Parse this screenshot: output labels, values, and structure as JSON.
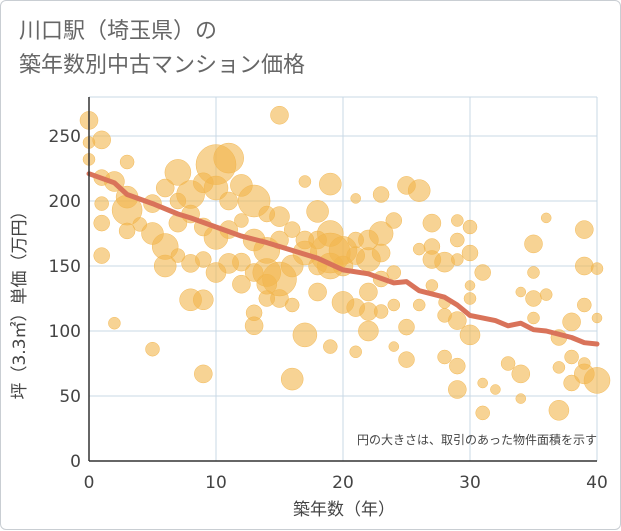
{
  "title_line1": "川口駅（埼玉県）の",
  "title_line2": "築年数別中古マンション価格",
  "note": "円の大きさは、取引のあった物件面積を示す",
  "colors": {
    "bubble": "#f2b54c",
    "line": "#d9735a",
    "grid": "#c9d9e6",
    "axis": "#333333"
  },
  "chart_data": {
    "type": "scatter",
    "xlabel": "築年数（年）",
    "ylabel": "坪（3.3㎡）単価（万円）",
    "xlim": [
      0,
      40
    ],
    "ylim": [
      0,
      280
    ],
    "xticks": [
      0,
      10,
      20,
      30,
      40
    ],
    "yticks": [
      0,
      50,
      100,
      150,
      200,
      250
    ],
    "grid": true,
    "bubbles": [
      [
        0,
        262,
        9
      ],
      [
        0,
        245,
        6
      ],
      [
        1,
        247,
        9
      ],
      [
        0,
        232,
        6
      ],
      [
        1,
        218,
        8
      ],
      [
        1,
        198,
        7
      ],
      [
        1,
        183,
        8
      ],
      [
        1,
        158,
        8
      ],
      [
        2,
        106,
        6
      ],
      [
        2,
        215,
        10
      ],
      [
        3,
        230,
        7
      ],
      [
        3,
        203,
        11
      ],
      [
        3,
        193,
        15
      ],
      [
        3,
        177,
        8
      ],
      [
        4,
        182,
        7
      ],
      [
        5,
        198,
        9
      ],
      [
        5,
        175,
        11
      ],
      [
        5,
        86,
        7
      ],
      [
        6,
        210,
        9
      ],
      [
        6,
        165,
        13
      ],
      [
        6,
        150,
        11
      ],
      [
        7,
        222,
        13
      ],
      [
        7,
        200,
        8
      ],
      [
        7,
        183,
        9
      ],
      [
        7,
        158,
        7
      ],
      [
        8,
        205,
        14
      ],
      [
        8,
        190,
        9
      ],
      [
        8,
        152,
        9
      ],
      [
        8,
        124,
        11
      ],
      [
        9,
        214,
        10
      ],
      [
        9,
        180,
        9
      ],
      [
        9,
        155,
        8
      ],
      [
        9,
        124,
        10
      ],
      [
        9,
        67,
        9
      ],
      [
        10,
        228,
        20
      ],
      [
        10,
        210,
        12
      ],
      [
        10,
        172,
        12
      ],
      [
        10,
        145,
        10
      ],
      [
        11,
        233,
        15
      ],
      [
        11,
        200,
        9
      ],
      [
        11,
        178,
        9
      ],
      [
        11,
        152,
        10
      ],
      [
        12,
        212,
        11
      ],
      [
        12,
        185,
        7
      ],
      [
        12,
        153,
        9
      ],
      [
        12,
        136,
        9
      ],
      [
        13,
        200,
        16
      ],
      [
        13,
        170,
        11
      ],
      [
        13,
        145,
        9
      ],
      [
        13,
        114,
        8
      ],
      [
        13,
        104,
        9
      ],
      [
        14,
        190,
        8
      ],
      [
        14,
        162,
        13
      ],
      [
        14,
        145,
        14
      ],
      [
        14,
        136,
        10
      ],
      [
        14,
        125,
        8
      ],
      [
        15,
        266,
        9
      ],
      [
        15,
        188,
        10
      ],
      [
        15,
        170,
        9
      ],
      [
        15,
        140,
        17
      ],
      [
        15,
        125,
        9
      ],
      [
        16,
        178,
        8
      ],
      [
        16,
        150,
        11
      ],
      [
        16,
        120,
        7
      ],
      [
        16,
        63,
        11
      ],
      [
        17,
        215,
        6
      ],
      [
        17,
        170,
        9
      ],
      [
        17,
        160,
        12
      ],
      [
        17,
        97,
        12
      ],
      [
        18,
        192,
        11
      ],
      [
        18,
        170,
        9
      ],
      [
        18,
        150,
        9
      ],
      [
        18,
        130,
        9
      ],
      [
        19,
        213,
        11
      ],
      [
        19,
        175,
        13
      ],
      [
        19,
        160,
        20
      ],
      [
        19,
        150,
        13
      ],
      [
        19,
        88,
        7
      ],
      [
        20,
        162,
        14
      ],
      [
        20,
        150,
        10
      ],
      [
        20,
        122,
        11
      ],
      [
        21,
        202,
        5
      ],
      [
        21,
        170,
        8
      ],
      [
        21,
        158,
        9
      ],
      [
        21,
        118,
        9
      ],
      [
        21,
        84,
        6
      ],
      [
        22,
        170,
        10
      ],
      [
        22,
        155,
        12
      ],
      [
        22,
        130,
        9
      ],
      [
        22,
        115,
        9
      ],
      [
        22,
        100,
        10
      ],
      [
        23,
        205,
        8
      ],
      [
        23,
        175,
        12
      ],
      [
        23,
        160,
        9
      ],
      [
        23,
        140,
        8
      ],
      [
        23,
        115,
        7
      ],
      [
        24,
        185,
        8
      ],
      [
        24,
        145,
        7
      ],
      [
        24,
        120,
        6
      ],
      [
        24,
        88,
        5
      ],
      [
        25,
        212,
        9
      ],
      [
        25,
        103,
        8
      ],
      [
        25,
        78,
        8
      ],
      [
        26,
        208,
        11
      ],
      [
        26,
        163,
        6
      ],
      [
        26,
        120,
        6
      ],
      [
        27,
        183,
        9
      ],
      [
        27,
        165,
        8
      ],
      [
        27,
        155,
        9
      ],
      [
        27,
        135,
        6
      ],
      [
        28,
        153,
        10
      ],
      [
        28,
        122,
        6
      ],
      [
        28,
        112,
        7
      ],
      [
        28,
        80,
        7
      ],
      [
        29,
        185,
        6
      ],
      [
        29,
        170,
        7
      ],
      [
        29,
        155,
        6
      ],
      [
        29,
        108,
        9
      ],
      [
        29,
        73,
        8
      ],
      [
        29,
        55,
        9
      ],
      [
        30,
        180,
        7
      ],
      [
        30,
        160,
        8
      ],
      [
        30,
        125,
        6
      ],
      [
        30,
        97,
        10
      ],
      [
        30,
        135,
        5
      ],
      [
        31,
        145,
        8
      ],
      [
        31,
        60,
        5
      ],
      [
        31,
        37,
        7
      ],
      [
        32,
        55,
        5
      ],
      [
        33,
        75,
        7
      ],
      [
        34,
        130,
        5
      ],
      [
        34,
        67,
        9
      ],
      [
        34,
        48,
        5
      ],
      [
        35,
        167,
        9
      ],
      [
        35,
        145,
        6
      ],
      [
        35,
        125,
        8
      ],
      [
        35,
        110,
        6
      ],
      [
        36,
        187,
        5
      ],
      [
        36,
        128,
        6
      ],
      [
        37,
        95,
        8
      ],
      [
        37,
        72,
        6
      ],
      [
        37,
        39,
        10
      ],
      [
        38,
        80,
        7
      ],
      [
        38,
        60,
        8
      ],
      [
        38,
        107,
        9
      ],
      [
        39,
        178,
        9
      ],
      [
        39,
        150,
        9
      ],
      [
        39,
        120,
        7
      ],
      [
        39,
        67,
        10
      ],
      [
        39,
        75,
        6
      ],
      [
        40,
        148,
        6
      ],
      [
        40,
        62,
        13
      ],
      [
        40,
        110,
        5
      ]
    ],
    "trend": [
      [
        0,
        221
      ],
      [
        2,
        214
      ],
      [
        3,
        205
      ],
      [
        5,
        198
      ],
      [
        7,
        190
      ],
      [
        8,
        187
      ],
      [
        10,
        180
      ],
      [
        12,
        173
      ],
      [
        14,
        168
      ],
      [
        16,
        162
      ],
      [
        18,
        156
      ],
      [
        20,
        147
      ],
      [
        22,
        144
      ],
      [
        24,
        137
      ],
      [
        25,
        138
      ],
      [
        26,
        131
      ],
      [
        28,
        126
      ],
      [
        29,
        120
      ],
      [
        30,
        112
      ],
      [
        32,
        108
      ],
      [
        33,
        104
      ],
      [
        34,
        106
      ],
      [
        35,
        101
      ],
      [
        36,
        100
      ],
      [
        38,
        95
      ],
      [
        39,
        91
      ],
      [
        40,
        90
      ]
    ]
  }
}
